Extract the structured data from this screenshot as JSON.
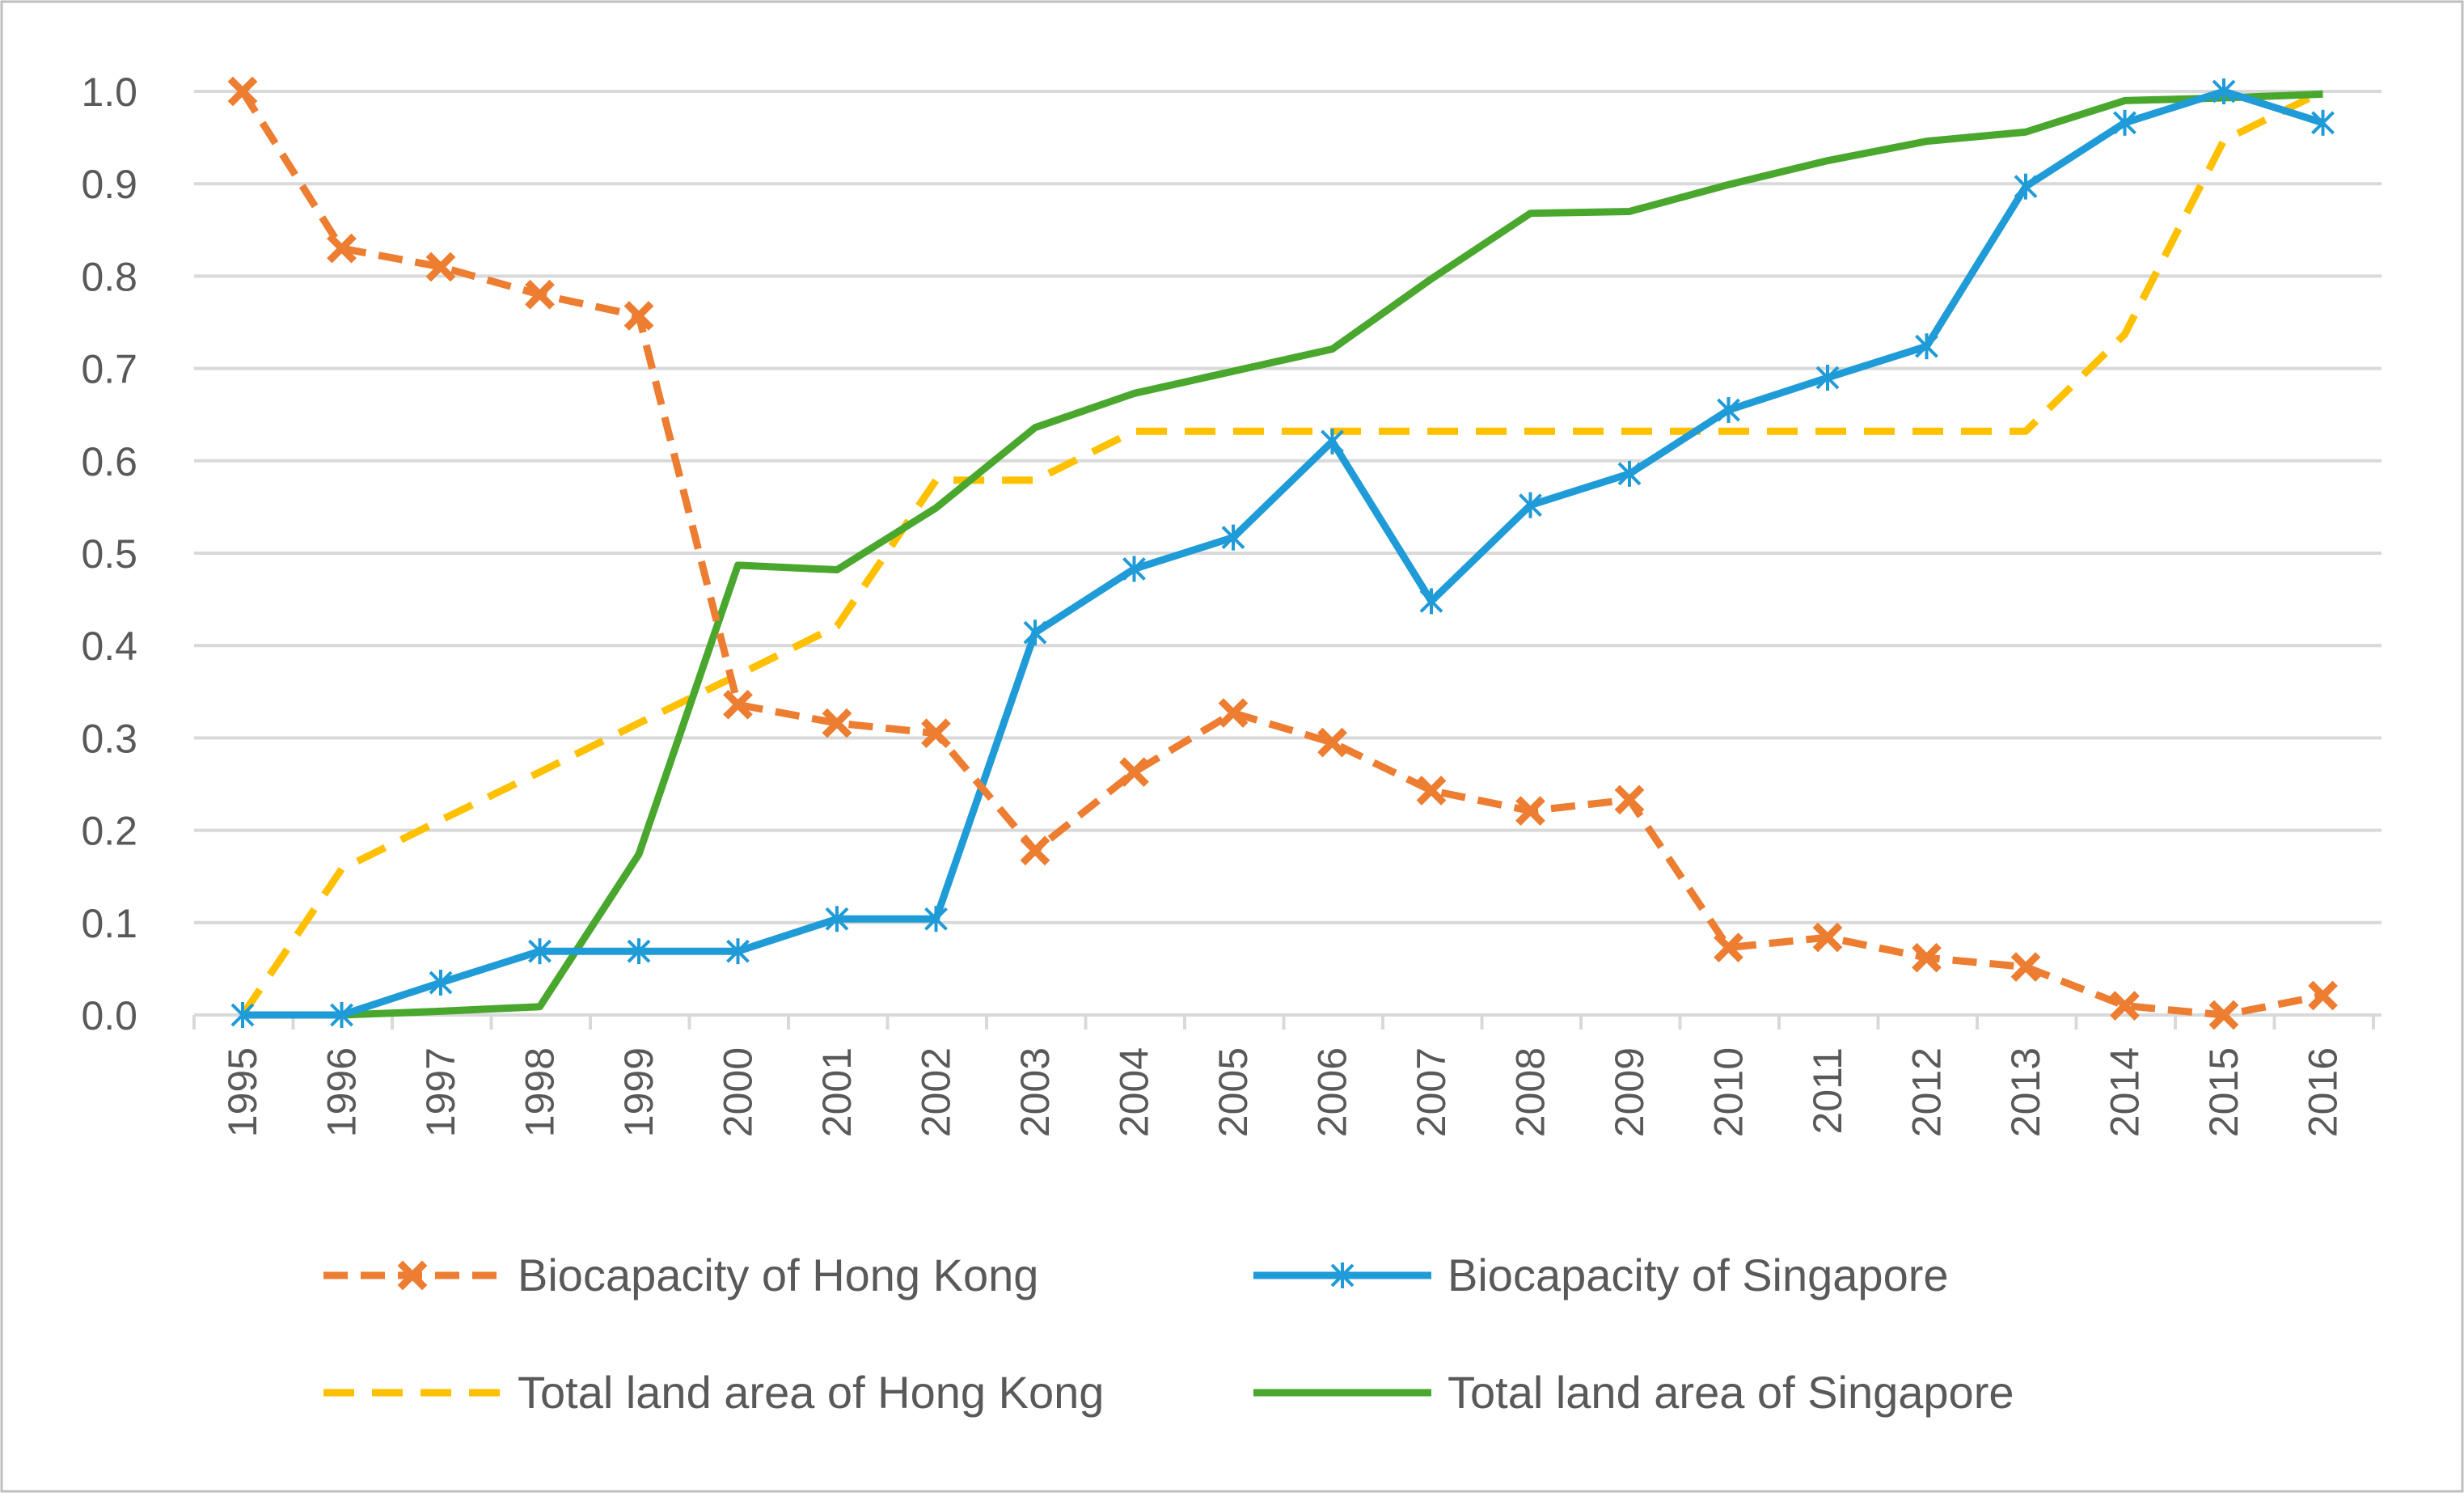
{
  "chart_data": {
    "type": "line",
    "title": "",
    "xlabel": "",
    "ylabel": "",
    "categories": [
      "1995",
      "1996",
      "1997",
      "1998",
      "1999",
      "2000",
      "2001",
      "2002",
      "2003",
      "2004",
      "2005",
      "2006",
      "2007",
      "2008",
      "2009",
      "2010",
      "2011",
      "2012",
      "2013",
      "2014",
      "2015",
      "2016"
    ],
    "ylim": [
      0,
      1
    ],
    "yticks": [
      "0.0",
      "0.1",
      "0.2",
      "0.3",
      "0.4",
      "0.5",
      "0.6",
      "0.7",
      "0.8",
      "0.9",
      "1.0"
    ],
    "grid": true,
    "legend_position": "bottom",
    "series": [
      {
        "name": "Biocapacity of Hong Kong",
        "color": "#ED7D31",
        "line_style": "dashed",
        "marker": "x-cross",
        "values": [
          1.0,
          0.83,
          0.81,
          0.78,
          0.757,
          0.336,
          0.316,
          0.305,
          0.178,
          0.263,
          0.327,
          0.295,
          0.243,
          0.221,
          0.233,
          0.073,
          0.084,
          0.062,
          0.052,
          0.01,
          0.0,
          0.021
        ]
      },
      {
        "name": "Biocapacity of Singapore",
        "color": "#1F9BD7",
        "line_style": "solid",
        "marker": "asterisk",
        "values": [
          0.0,
          0.0,
          0.035,
          0.069,
          0.069,
          0.069,
          0.104,
          0.104,
          0.414,
          0.483,
          0.517,
          0.621,
          0.448,
          0.552,
          0.586,
          0.655,
          0.69,
          0.724,
          0.897,
          0.966,
          1.0,
          0.966
        ]
      },
      {
        "name": "Total land area of Hong Kong",
        "color": "#FFC000",
        "line_style": "dashed",
        "marker": "none",
        "values": [
          0.0,
          0.158,
          0.211,
          0.263,
          0.316,
          0.368,
          0.421,
          0.579,
          0.579,
          0.632,
          0.632,
          0.632,
          0.632,
          0.632,
          0.632,
          0.632,
          0.632,
          0.632,
          0.632,
          0.737,
          0.947,
          1.0
        ]
      },
      {
        "name": "Total land area of Singapore",
        "color": "#4AA72E",
        "line_style": "solid",
        "marker": "none",
        "values": [
          0.0,
          0.0,
          0.004,
          0.009,
          0.174,
          0.487,
          0.482,
          0.549,
          0.636,
          0.673,
          0.697,
          0.721,
          0.797,
          0.868,
          0.87,
          0.899,
          0.925,
          0.946,
          0.956,
          0.99,
          0.993,
          0.997
        ]
      }
    ]
  }
}
